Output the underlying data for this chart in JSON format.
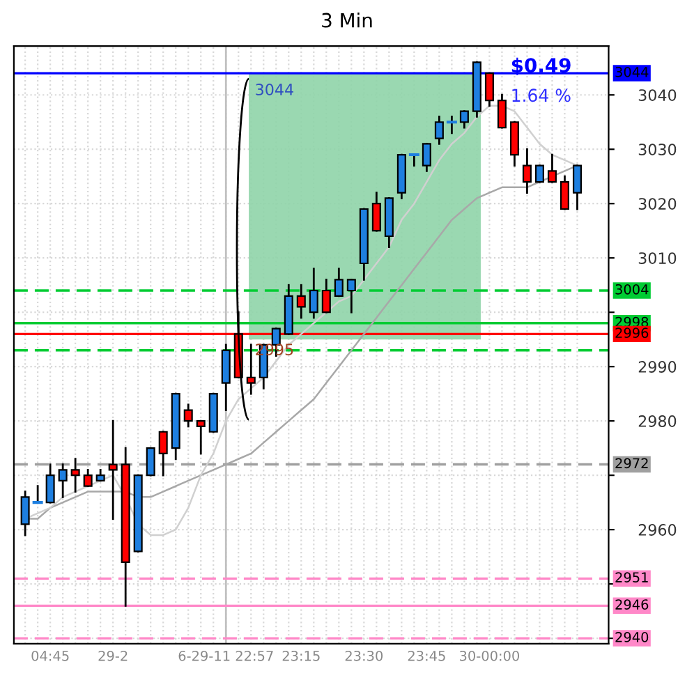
{
  "chart_data": {
    "type": "candlestick",
    "title": "3 Min",
    "categories": [
      null,
      null,
      "04:45",
      null,
      null,
      null,
      null,
      "29-2",
      null,
      null,
      null,
      null,
      null,
      null,
      null,
      null,
      "6-29-11 22:57",
      null,
      null,
      null,
      null,
      null,
      "23:15",
      null,
      null,
      null,
      null,
      "23:30",
      null,
      null,
      null,
      null,
      "23:45",
      null,
      null,
      null,
      null,
      "30-00:00",
      null,
      null,
      null,
      null,
      null,
      null,
      null
    ],
    "ohlc": [
      [
        2961,
        2967,
        2959,
        2966
      ],
      [
        2965,
        2968,
        2965,
        2965
      ],
      [
        2965,
        2972,
        2965,
        2970
      ],
      [
        2969,
        2972,
        2966,
        2971
      ],
      [
        2971,
        2973,
        2967,
        2970
      ],
      [
        2970,
        2971,
        2968,
        2968
      ],
      [
        2969,
        2971,
        2969,
        2970
      ],
      [
        2972,
        2980,
        2962,
        2971
      ],
      [
        2972,
        2975,
        2946,
        2954
      ],
      [
        2956,
        2970,
        2956,
        2970
      ],
      [
        2970,
        2975,
        2970,
        2975
      ],
      [
        2978,
        2978,
        2970,
        2974
      ],
      [
        2975,
        2985,
        2973,
        2985
      ],
      [
        2982,
        2983,
        2979,
        2980
      ],
      [
        2980,
        2980,
        2974,
        2979
      ],
      [
        2978,
        2985,
        2978,
        2985
      ],
      [
        2987,
        2994,
        2982,
        2993
      ],
      [
        2996,
        3000,
        2988,
        2988
      ],
      [
        2988,
        2994,
        2985,
        2987
      ],
      [
        2988,
        2994,
        2986,
        2994
      ],
      [
        2994,
        2997,
        2992,
        2997
      ],
      [
        2996,
        3005,
        2996,
        3003
      ],
      [
        3003,
        3005,
        2999,
        3001
      ],
      [
        3000,
        3008,
        2999,
        3004
      ],
      [
        3004,
        3006,
        3000,
        3000
      ],
      [
        3003,
        3008,
        3003,
        3006
      ],
      [
        3004,
        3006,
        3000,
        3006
      ],
      [
        3009,
        3019,
        3006,
        3019
      ],
      [
        3020,
        3022,
        3015,
        3015
      ],
      [
        3014,
        3021,
        3012,
        3021
      ],
      [
        3022,
        3029,
        3021,
        3029
      ],
      [
        3029,
        3029,
        3027,
        3029
      ],
      [
        3027,
        3031,
        3026,
        3031
      ],
      [
        3032,
        3036,
        3031,
        3035
      ],
      [
        3035,
        3036,
        3033,
        3035
      ],
      [
        3035,
        3037,
        3034,
        3037
      ],
      [
        3037,
        3046,
        3036,
        3046
      ],
      [
        3044,
        3044,
        3038,
        3039
      ],
      [
        3039,
        3040,
        3034,
        3034
      ],
      [
        3035,
        3035,
        3027,
        3029
      ],
      [
        3027,
        3030,
        3022,
        3024
      ],
      [
        3024,
        3027,
        3024,
        3027
      ],
      [
        3026,
        3029,
        3024,
        3024
      ],
      [
        3024,
        3025,
        3019,
        3019
      ],
      [
        3022,
        3027,
        3019,
        3027
      ]
    ],
    "colors": [
      "#1e7fe0",
      "#1e7fe0",
      "#1e7fe0",
      "#1e7fe0",
      "#ff0000",
      "#ff0000",
      "#1e7fe0",
      "#ff0000",
      "#ff0000",
      "#1e7fe0",
      "#1e7fe0",
      "#ff0000",
      "#1e7fe0",
      "#ff0000",
      "#ff0000",
      "#1e7fe0",
      "#1e7fe0",
      "#ff0000",
      "#ff0000",
      "#1e7fe0",
      "#1e7fe0",
      "#1e7fe0",
      "#ff0000",
      "#1e7fe0",
      "#ff0000",
      "#1e7fe0",
      "#1e7fe0",
      "#1e7fe0",
      "#ff0000",
      "#1e7fe0",
      "#1e7fe0",
      "#1e7fe0",
      "#1e7fe0",
      "#1e7fe0",
      "#1e7fe0",
      "#1e7fe0",
      "#1e7fe0",
      "#ff0000",
      "#ff0000",
      "#ff0000",
      "#ff0000",
      "#1e7fe0",
      "#ff0000",
      "#ff0000",
      "#1e7fe0"
    ],
    "series": [
      {
        "type": "line",
        "color": "#a8a8a8",
        "values": [
          2962,
          2962,
          2964,
          2965,
          2966,
          2967,
          2967,
          2967,
          2967,
          2966,
          2966,
          2967,
          2968,
          2969,
          2970,
          2971,
          2972,
          2973,
          2974,
          2976,
          2978,
          2980,
          2982,
          2984,
          2987,
          2990,
          2993,
          2996,
          2999,
          3002,
          3005,
          3008,
          3011,
          3014,
          3017,
          3019,
          3021,
          3022,
          3023,
          3023,
          3023,
          3024,
          3025,
          3026,
          3027
        ]
      },
      {
        "type": "line",
        "color": "#d0d0d0",
        "values": [
          2962,
          2963,
          2964,
          2966,
          2967,
          2968,
          2969,
          2970,
          2966,
          2961,
          2959,
          2959,
          2960,
          2964,
          2970,
          2974,
          2980,
          2984,
          2986,
          2988,
          2991,
          2994,
          2996,
          2998,
          3000,
          3002,
          3003,
          3006,
          3009,
          3012,
          3017,
          3020,
          3024,
          3028,
          3031,
          3033,
          3036,
          3038,
          3038,
          3037,
          3034,
          3031,
          3029,
          3028,
          3027
        ]
      }
    ],
    "ylim": [
      2939,
      3049
    ],
    "yticks": [
      {
        "value": 2940,
        "label": null
      },
      {
        "value": 2950,
        "label": null
      },
      2960,
      {
        "value": 2970,
        "label": null
      },
      2980,
      2990,
      {
        "value": 3000,
        "label": null
      },
      3010,
      3020,
      3030,
      3040
    ],
    "grid": true,
    "bands": [
      {
        "axis": "y",
        "from": 2995,
        "to": 3044,
        "color": "#8fd4a8"
      }
    ],
    "ref_lines": [
      {
        "axis": "x",
        "value": "6-29-11 22:57",
        "color": "#c0c0c0",
        "line_style": "solid"
      },
      {
        "axis": "y",
        "value": 3044,
        "label": "3044",
        "color": "#0000ff",
        "line_style": "solid"
      },
      {
        "axis": "y",
        "value": 3004,
        "label": "3004",
        "color": "#00cc33",
        "line_style": "dashed"
      },
      {
        "axis": "y",
        "value": 2998,
        "label": "2998",
        "color": "#00cc33",
        "line_style": "solid"
      },
      {
        "axis": "y",
        "value": 2996,
        "label": "2996",
        "color": "#ff0000",
        "line_style": "solid"
      },
      {
        "axis": "y",
        "value": 2993,
        "label": null,
        "color": "#00cc33",
        "line_style": "dashed"
      },
      {
        "axis": "y",
        "value": 2972,
        "label": "2972",
        "color": "#a0a0a0",
        "line_style": "dashed"
      },
      {
        "axis": "y",
        "value": 2951,
        "label": "2951",
        "color": "#ff88c8",
        "line_style": "dashed"
      },
      {
        "axis": "y",
        "value": 2946,
        "label": "2946",
        "color": "#ff88c8",
        "line_style": "solid"
      },
      {
        "axis": "y",
        "value": 2940,
        "label": "2940",
        "color": "#ff88c8",
        "line_style": "dashed"
      }
    ],
    "annotations": [
      "$0.49",
      "1.64 %",
      "3044",
      "2995"
    ]
  }
}
